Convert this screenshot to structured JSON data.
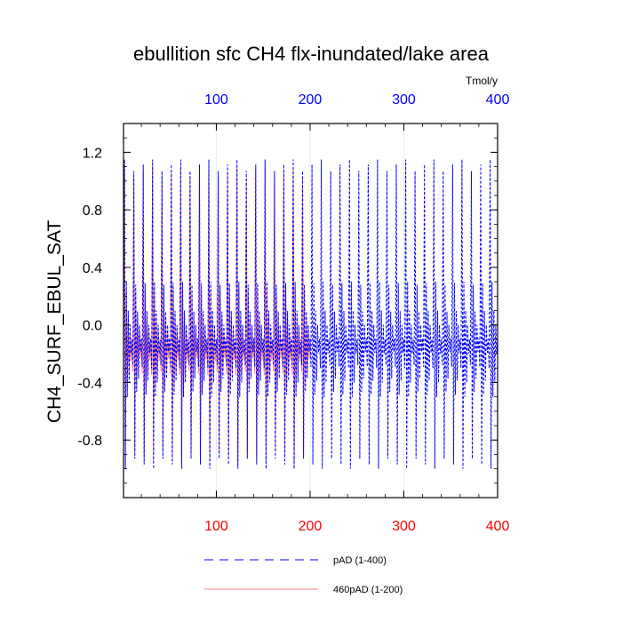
{
  "chart_data": {
    "type": "line",
    "title": "ebullition sfc CH4 flx-inundated/lake area",
    "ylabel": "CH4_SURF_EBUL_SAT",
    "top_axis_units": "Tmol/y",
    "xlim": [
      1,
      400
    ],
    "ylim": [
      -1.2,
      1.4
    ],
    "x_ticks": [
      100,
      200,
      300,
      400
    ],
    "y_ticks": [
      -0.8,
      -0.4,
      0.0,
      0.4,
      0.8,
      1.2
    ],
    "y_tick_labels": [
      "-0.8",
      "-0.4",
      "0.0",
      "0.4",
      "0.8",
      "1.2"
    ],
    "x_tick_labels_bottom": [
      "100",
      "200",
      "300",
      "400"
    ],
    "x_tick_labels_top": [
      "100",
      "200",
      "300",
      "400"
    ],
    "grid": "vertical dotted at 100, 200, 300",
    "annual_cycle": {
      "period": 10,
      "series_1": {
        "name": "pAD (1-400)",
        "color": "#0000ff",
        "style": "dashed",
        "x_range": [
          1,
          400
        ],
        "cycle_values": [
          -0.3,
          1.15,
          -1.0,
          0.3,
          -0.5,
          0.1,
          -0.4,
          0.0,
          -0.2,
          -0.1
        ]
      },
      "series_2": {
        "name": "460pAD (1-200)",
        "color": "#ff8080",
        "style": "solid",
        "x_range": [
          1,
          200
        ],
        "cycle_values": [
          -0.35,
          1.1,
          -0.95,
          0.25,
          -0.45,
          0.05,
          -0.35,
          -0.05,
          -0.25,
          -0.15
        ]
      }
    },
    "legend": [
      {
        "label": "pAD (1-400)",
        "color": "#0000ff",
        "style": "dashed"
      },
      {
        "label": "460pAD (1-200)",
        "color": "#ff8080",
        "style": "solid"
      }
    ]
  }
}
